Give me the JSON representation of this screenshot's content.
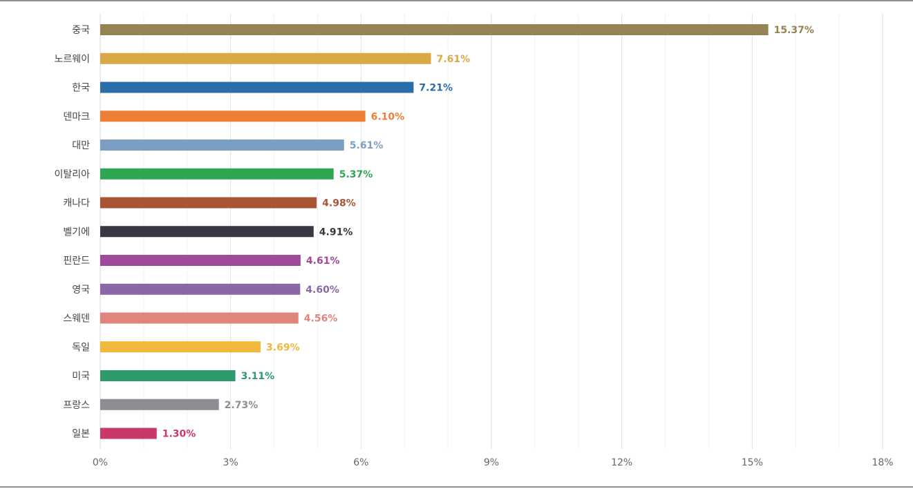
{
  "chart_data": {
    "type": "bar",
    "orientation": "horizontal",
    "title": "",
    "xlabel": "",
    "ylabel": "",
    "xlim": [
      0,
      18
    ],
    "x_ticks": [
      {
        "value": 0,
        "label": "0%"
      },
      {
        "value": 3,
        "label": "3%"
      },
      {
        "value": 6,
        "label": "6%"
      },
      {
        "value": 9,
        "label": "9%"
      },
      {
        "value": 12,
        "label": "12%"
      },
      {
        "value": 15,
        "label": "15%"
      },
      {
        "value": 18,
        "label": "18%"
      }
    ],
    "grid": true,
    "legend": "none",
    "bars": [
      {
        "category": "중국",
        "value": 15.37,
        "label": "15.37%",
        "color": "#968354"
      },
      {
        "category": "노르웨이",
        "value": 7.61,
        "label": "7.61%",
        "color": "#d8a945"
      },
      {
        "category": "한국",
        "value": 7.21,
        "label": "7.21%",
        "color": "#2b6ea8"
      },
      {
        "category": "덴마크",
        "value": 6.1,
        "label": "6.10%",
        "color": "#f07d34"
      },
      {
        "category": "대만",
        "value": 5.61,
        "label": "5.61%",
        "color": "#7d9ec4"
      },
      {
        "category": "이탈리아",
        "value": 5.37,
        "label": "5.37%",
        "color": "#2ea653"
      },
      {
        "category": "캐나다",
        "value": 4.98,
        "label": "4.98%",
        "color": "#a95535"
      },
      {
        "category": "벨기에",
        "value": 4.91,
        "label": "4.91%",
        "color": "#373843"
      },
      {
        "category": "핀란드",
        "value": 4.61,
        "label": "4.61%",
        "color": "#a1499a"
      },
      {
        "category": "영국",
        "value": 4.6,
        "label": "4.60%",
        "color": "#8a68a8"
      },
      {
        "category": "스웨덴",
        "value": 4.56,
        "label": "4.56%",
        "color": "#e0857c"
      },
      {
        "category": "독일",
        "value": 3.69,
        "label": "3.69%",
        "color": "#f1b83b"
      },
      {
        "category": "미국",
        "value": 3.11,
        "label": "3.11%",
        "color": "#2e9a6b"
      },
      {
        "category": "프랑스",
        "value": 2.73,
        "label": "2.73%",
        "color": "#8e8e92"
      },
      {
        "category": "일본",
        "value": 1.3,
        "label": "1.30%",
        "color": "#c9386a"
      }
    ]
  }
}
